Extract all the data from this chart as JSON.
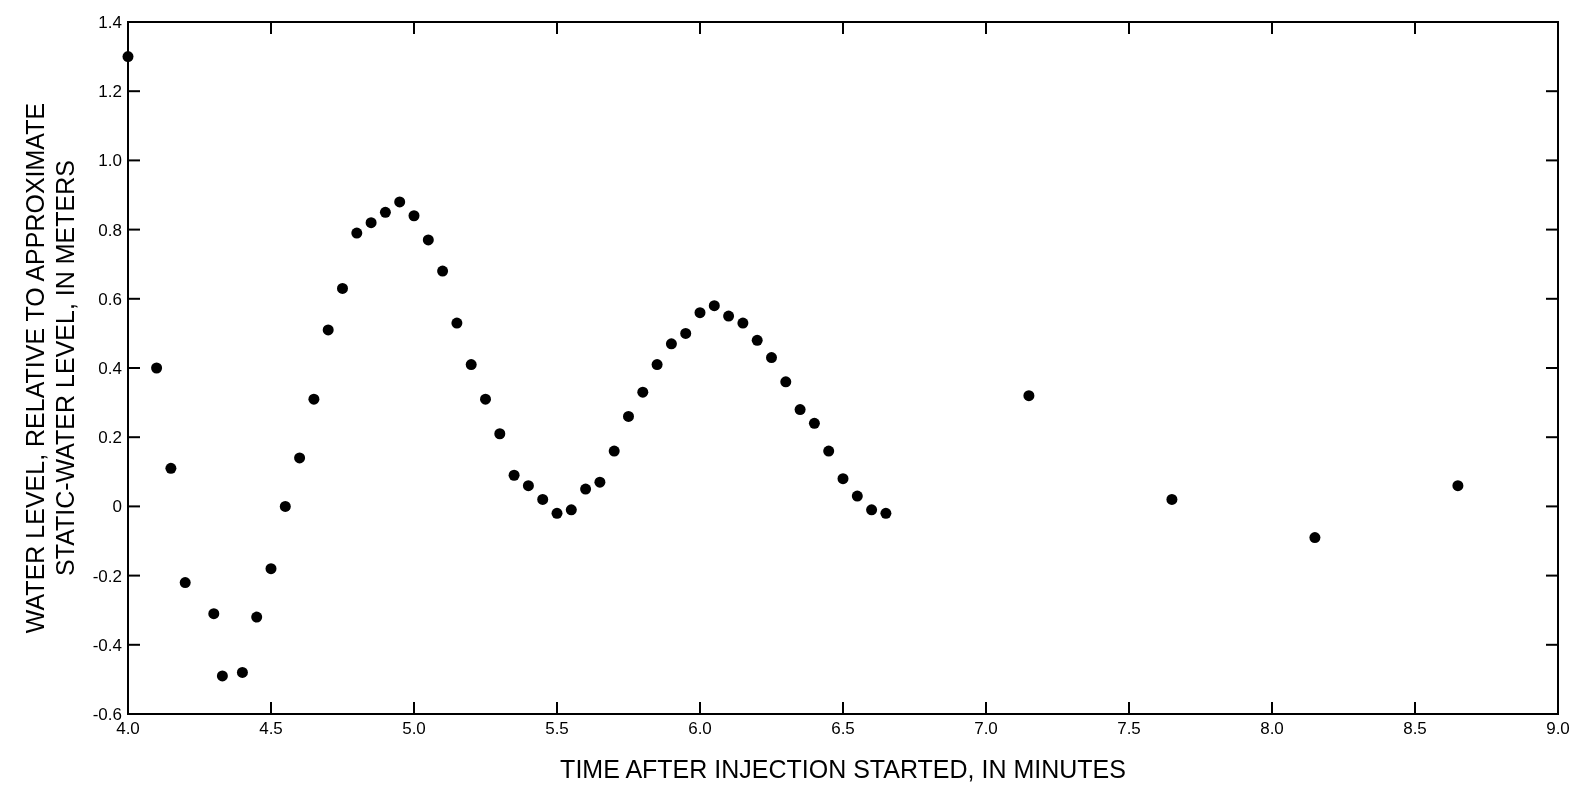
{
  "chart_data": {
    "type": "scatter",
    "xlabel": "TIME AFTER INJECTION STARTED, IN MINUTES",
    "ylabel": "WATER LEVEL, RELATIVE TO APPROXIMATE\nSTATIC-WATER LEVEL, IN METERS",
    "marker": "circle",
    "xlim": [
      4,
      9
    ],
    "ylim": [
      -0.6,
      1.4
    ],
    "xticks": [
      {
        "value": 4,
        "label": "4.0"
      },
      4.5,
      {
        "value": 5,
        "label": "5.0"
      },
      5.5,
      {
        "value": 6,
        "label": "6.0"
      },
      6.5,
      {
        "value": 7,
        "label": "7.0"
      },
      7.5,
      {
        "value": 8,
        "label": "8.0"
      },
      8.5,
      {
        "value": 9,
        "label": "9.0"
      }
    ],
    "yticks": [
      -0.6,
      -0.4,
      -0.2,
      0,
      0.2,
      0.4,
      0.6,
      0.8,
      {
        "value": 1,
        "label": "1.0"
      },
      1.2,
      1.4
    ],
    "series": [
      {
        "color": "#000000",
        "x": [
          4.0,
          4.1,
          4.15,
          4.2,
          4.3,
          4.33,
          4.4,
          4.45,
          4.5,
          4.55,
          4.6,
          4.65,
          4.7,
          4.75,
          4.8,
          4.85,
          4.9,
          4.95,
          5.0,
          5.05,
          5.1,
          5.15,
          5.2,
          5.25,
          5.3,
          5.35,
          5.4,
          5.45,
          5.5,
          5.55,
          5.6,
          5.65,
          5.7,
          5.75,
          5.8,
          5.85,
          5.9,
          5.95,
          6.0,
          6.05,
          6.1,
          6.15,
          6.2,
          6.25,
          6.3,
          6.35,
          6.4,
          6.45,
          6.5,
          6.55,
          6.6,
          6.65,
          7.15,
          7.65,
          8.15,
          8.65
        ],
        "values": [
          1.3,
          0.4,
          0.11,
          -0.22,
          -0.31,
          -0.49,
          -0.48,
          -0.32,
          -0.18,
          0.0,
          0.14,
          0.31,
          0.51,
          0.63,
          0.79,
          0.82,
          0.85,
          0.88,
          0.84,
          0.77,
          0.68,
          0.53,
          0.41,
          0.31,
          0.21,
          0.09,
          0.06,
          0.02,
          -0.02,
          -0.01,
          0.05,
          0.07,
          0.16,
          0.26,
          0.33,
          0.41,
          0.47,
          0.5,
          0.56,
          0.58,
          0.55,
          0.53,
          0.48,
          0.43,
          0.36,
          0.28,
          0.24,
          0.16,
          0.08,
          0.03,
          -0.01,
          -0.02,
          0.32,
          0.02,
          -0.09,
          0.06
        ]
      }
    ]
  }
}
